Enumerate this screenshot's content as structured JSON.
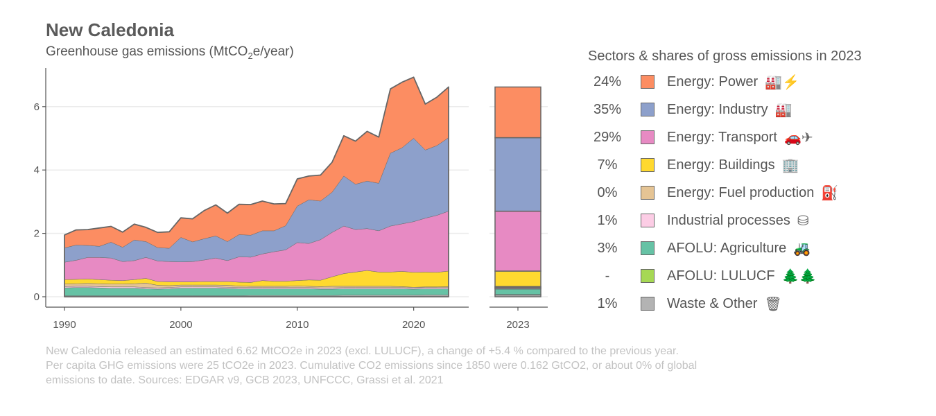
{
  "title": "New Caledonia",
  "subtitle_prefix": "Greenhouse gas emissions (MtCO",
  "subtitle_sub": "2",
  "subtitle_suffix": "e/year)",
  "legend": {
    "title": "Sectors & shares of gross emissions in 2023",
    "items": [
      {
        "share": "24%",
        "label": "Energy: Power",
        "color": "#fc8d62",
        "icon": "power-plant-icon",
        "glyph": "🏭⚡"
      },
      {
        "share": "35%",
        "label": "Energy: Industry",
        "color": "#8da0cb",
        "icon": "factory-icon",
        "glyph": "🏭"
      },
      {
        "share": "29%",
        "label": "Energy: Transport",
        "color": "#e78ac3",
        "icon": "car-plane-icon",
        "glyph": "🚗✈"
      },
      {
        "share": "7%",
        "label": "Energy: Buildings",
        "color": "#ffd92f",
        "icon": "building-icon",
        "glyph": "🏢"
      },
      {
        "share": "0%",
        "label": "Energy: Fuel production",
        "color": "#e5c494",
        "icon": "oil-rig-icon",
        "glyph": "⛽"
      },
      {
        "share": "1%",
        "label": "Industrial processes",
        "color": "#fccde5",
        "icon": "industrial-tank-icon",
        "glyph": "⛁"
      },
      {
        "share": "3%",
        "label": "AFOLU: Agriculture",
        "color": "#66c2a5",
        "icon": "tractor-icon",
        "glyph": "🚜"
      },
      {
        "share": "-",
        "label": "AFOLU: LULUCF",
        "color": "#a6d854",
        "icon": "trees-icon",
        "glyph": "🌲🌲"
      },
      {
        "share": "1%",
        "label": "Waste & Other",
        "color": "#b3b3b3",
        "icon": "trash-icon",
        "glyph": "🗑"
      }
    ]
  },
  "footnote": [
    "New Caledonia released an estimated 6.62 MtCO2e in 2023 (excl. LULUCF), a change of +5.4 % compared to the previous year.",
    "Per capita GHG emissions were 25 tCO2e in 2023. Cumulative CO2 emissions since 1850 were 0.162 GtCO2, or about 0% of global",
    "emissions to date. Sources: EDGAR v9, GCB 2023, UNFCCC, Grassi et al. 2021"
  ],
  "chart_data": [
    {
      "type": "area",
      "stacked": true,
      "title": "New Caledonia",
      "ylabel": "Greenhouse gas emissions (MtCO2e/year)",
      "xlim": [
        1990,
        2023
      ],
      "ylim": [
        0,
        7
      ],
      "x_ticks": [
        1990,
        2000,
        2010,
        2020
      ],
      "y_ticks": [
        0,
        2,
        4,
        6
      ],
      "grid": "horizontal",
      "x": [
        1990,
        1991,
        1992,
        1993,
        1994,
        1995,
        1996,
        1997,
        1998,
        1999,
        2000,
        2001,
        2002,
        2003,
        2004,
        2005,
        2006,
        2007,
        2008,
        2009,
        2010,
        2011,
        2012,
        2013,
        2014,
        2015,
        2016,
        2017,
        2018,
        2019,
        2020,
        2021,
        2022,
        2023
      ],
      "series": [
        {
          "name": "Waste & Other",
          "color": "#b3b3b3",
          "values": [
            0.03,
            0.03,
            0.03,
            0.03,
            0.03,
            0.03,
            0.03,
            0.03,
            0.03,
            0.03,
            0.03,
            0.03,
            0.03,
            0.03,
            0.03,
            0.03,
            0.04,
            0.04,
            0.04,
            0.04,
            0.04,
            0.04,
            0.04,
            0.04,
            0.05,
            0.05,
            0.05,
            0.05,
            0.05,
            0.05,
            0.05,
            0.06,
            0.06,
            0.06
          ]
        },
        {
          "name": "AFOLU: Agriculture",
          "color": "#66c2a5",
          "values": [
            0.25,
            0.26,
            0.26,
            0.25,
            0.24,
            0.24,
            0.24,
            0.22,
            0.21,
            0.22,
            0.24,
            0.24,
            0.24,
            0.24,
            0.23,
            0.22,
            0.21,
            0.21,
            0.21,
            0.21,
            0.21,
            0.21,
            0.2,
            0.2,
            0.2,
            0.2,
            0.2,
            0.2,
            0.2,
            0.2,
            0.19,
            0.19,
            0.19,
            0.19
          ]
        },
        {
          "name": "Industrial processes",
          "color": "#fccde5",
          "values": [
            0.04,
            0.04,
            0.04,
            0.04,
            0.04,
            0.04,
            0.04,
            0.04,
            0.04,
            0.04,
            0.04,
            0.04,
            0.04,
            0.04,
            0.04,
            0.04,
            0.04,
            0.04,
            0.04,
            0.04,
            0.04,
            0.04,
            0.04,
            0.04,
            0.04,
            0.04,
            0.04,
            0.04,
            0.04,
            0.04,
            0.04,
            0.04,
            0.04,
            0.04
          ]
        },
        {
          "name": "Energy: Fuel production",
          "color": "#e5c494",
          "values": [
            0.08,
            0.08,
            0.09,
            0.09,
            0.09,
            0.09,
            0.1,
            0.14,
            0.08,
            0.06,
            0.06,
            0.06,
            0.06,
            0.06,
            0.06,
            0.05,
            0.04,
            0.04,
            0.04,
            0.04,
            0.05,
            0.04,
            0.04,
            0.05,
            0.04,
            0.04,
            0.04,
            0.04,
            0.04,
            0.03,
            0.02,
            0.02,
            0.02,
            0.03
          ]
        },
        {
          "name": "Energy: Buildings",
          "color": "#ffd92f",
          "values": [
            0.14,
            0.14,
            0.14,
            0.13,
            0.12,
            0.11,
            0.13,
            0.15,
            0.12,
            0.12,
            0.1,
            0.1,
            0.11,
            0.11,
            0.12,
            0.12,
            0.12,
            0.18,
            0.16,
            0.16,
            0.17,
            0.2,
            0.2,
            0.3,
            0.4,
            0.45,
            0.5,
            0.45,
            0.45,
            0.48,
            0.47,
            0.47,
            0.46,
            0.49
          ]
        },
        {
          "name": "Energy: Transport",
          "color": "#e78ac3",
          "values": [
            0.55,
            0.6,
            0.68,
            0.7,
            0.7,
            0.6,
            0.6,
            0.66,
            0.65,
            0.64,
            0.63,
            0.64,
            0.68,
            0.74,
            0.66,
            0.8,
            0.8,
            0.84,
            0.93,
            0.99,
            1.2,
            1.15,
            1.28,
            1.4,
            1.5,
            1.34,
            1.32,
            1.3,
            1.45,
            1.5,
            1.6,
            1.7,
            1.8,
            1.89
          ]
        },
        {
          "name": "Energy: Industry",
          "color": "#8da0cb",
          "values": [
            0.45,
            0.48,
            0.38,
            0.35,
            0.5,
            0.45,
            0.65,
            0.5,
            0.42,
            0.42,
            0.77,
            0.62,
            0.67,
            0.7,
            0.6,
            0.7,
            0.69,
            0.73,
            0.66,
            0.76,
            1.15,
            1.38,
            1.22,
            1.27,
            1.58,
            1.43,
            1.5,
            1.5,
            2.3,
            2.4,
            2.63,
            2.15,
            2.2,
            2.32
          ]
        },
        {
          "name": "Energy: Power",
          "color": "#fc8d62",
          "values": [
            0.41,
            0.48,
            0.5,
            0.58,
            0.5,
            0.48,
            0.5,
            0.45,
            0.48,
            0.52,
            0.62,
            0.73,
            0.89,
            0.98,
            0.9,
            0.96,
            0.97,
            0.94,
            0.85,
            0.7,
            0.86,
            0.75,
            0.82,
            0.95,
            1.27,
            1.36,
            1.57,
            1.46,
            2.03,
            2.07,
            1.93,
            1.45,
            1.53,
            1.6
          ]
        }
      ]
    },
    {
      "type": "bar",
      "stacked": true,
      "categories": [
        "2023"
      ],
      "ylim": [
        0,
        7
      ],
      "series": [
        {
          "name": "Waste & Other",
          "color": "#b3b3b3",
          "values": [
            0.06
          ]
        },
        {
          "name": "AFOLU: Agriculture",
          "color": "#66c2a5",
          "values": [
            0.19
          ]
        },
        {
          "name": "Industrial processes",
          "color": "#fccde5",
          "values": [
            0.04
          ]
        },
        {
          "name": "Energy: Fuel production",
          "color": "#e5c494",
          "values": [
            0.03
          ]
        },
        {
          "name": "Energy: Buildings",
          "color": "#ffd92f",
          "values": [
            0.49
          ]
        },
        {
          "name": "Energy: Transport",
          "color": "#e78ac3",
          "values": [
            1.89
          ]
        },
        {
          "name": "Energy: Industry",
          "color": "#8da0cb",
          "values": [
            2.32
          ]
        },
        {
          "name": "Energy: Power",
          "color": "#fc8d62",
          "values": [
            1.6
          ]
        }
      ]
    }
  ]
}
